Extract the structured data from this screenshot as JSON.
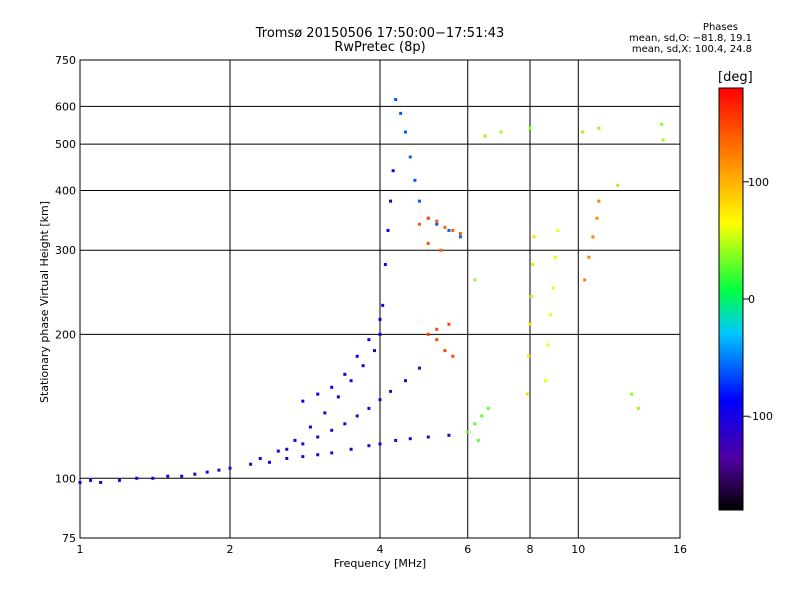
{
  "chart_data": {
    "type": "scatter",
    "title": "Tromsø 20150506 17:50:00−17:51:43",
    "subtitle": "RwPretec (8p)",
    "xlabel": "Frequency [MHz]",
    "ylabel": "Stationary phase Virtual Height [km]",
    "xscale": "log",
    "yscale": "log",
    "xlim": [
      1,
      16
    ],
    "ylim": [
      75,
      750
    ],
    "xticks": [
      1,
      2,
      4,
      6,
      8,
      10,
      16
    ],
    "yticks": [
      75,
      100,
      200,
      300,
      400,
      500,
      600,
      750
    ],
    "grid": true,
    "stats": {
      "heading": "Phases",
      "line1": "mean, sd,O: −81.8, 19.1",
      "line2": "mean, sd,X: 100.4, 24.8"
    },
    "colorbar": {
      "label": "[deg]",
      "range": [
        -180,
        180
      ],
      "ticks": [
        100,
        0,
        -100
      ],
      "colormap": "rainbow-black-to-red"
    },
    "trace_o_low": {
      "phase": -110,
      "points": [
        [
          1.0,
          98
        ],
        [
          1.05,
          99
        ],
        [
          1.1,
          98
        ],
        [
          1.2,
          99
        ],
        [
          1.3,
          100
        ],
        [
          1.4,
          100
        ],
        [
          1.5,
          101
        ],
        [
          1.6,
          101
        ],
        [
          1.7,
          102
        ],
        [
          1.8,
          103
        ],
        [
          1.9,
          104
        ],
        [
          2.0,
          105
        ],
        [
          2.2,
          107
        ],
        [
          2.4,
          108
        ],
        [
          2.6,
          110
        ],
        [
          2.8,
          111
        ],
        [
          3.0,
          112
        ],
        [
          3.2,
          113
        ],
        [
          3.5,
          115
        ],
        [
          3.8,
          117
        ],
        [
          4.0,
          118
        ],
        [
          4.3,
          120
        ],
        [
          4.6,
          121
        ],
        [
          5.0,
          122
        ],
        [
          5.5,
          123
        ]
      ]
    },
    "trace_o_rise": {
      "phase": -100,
      "points": [
        [
          2.3,
          110
        ],
        [
          2.5,
          114
        ],
        [
          2.7,
          120
        ],
        [
          2.9,
          128
        ],
        [
          3.1,
          137
        ],
        [
          3.3,
          148
        ],
        [
          3.5,
          160
        ],
        [
          3.7,
          172
        ],
        [
          3.9,
          185
        ],
        [
          4.0,
          200
        ],
        [
          4.05,
          230
        ],
        [
          4.1,
          280
        ],
        [
          4.15,
          330
        ],
        [
          4.2,
          380
        ],
        [
          4.25,
          440
        ]
      ]
    },
    "trace_x_low": {
      "phase": -115,
      "points": [
        [
          2.6,
          115
        ],
        [
          2.8,
          118
        ],
        [
          3.0,
          122
        ],
        [
          3.2,
          126
        ],
        [
          3.4,
          130
        ],
        [
          3.6,
          135
        ],
        [
          3.8,
          140
        ],
        [
          4.0,
          146
        ],
        [
          4.2,
          152
        ],
        [
          4.5,
          160
        ],
        [
          4.8,
          170
        ]
      ]
    },
    "trace_x_rise": {
      "phase": -95,
      "points": [
        [
          2.8,
          145
        ],
        [
          3.0,
          150
        ],
        [
          3.2,
          155
        ],
        [
          3.4,
          165
        ],
        [
          3.6,
          180
        ],
        [
          3.8,
          195
        ],
        [
          4.0,
          215
        ]
      ]
    },
    "trace_f2_top": {
      "phase": -60,
      "points": [
        [
          4.3,
          620
        ],
        [
          4.4,
          580
        ],
        [
          4.5,
          530
        ],
        [
          4.6,
          470
        ],
        [
          4.7,
          420
        ],
        [
          4.8,
          380
        ],
        [
          5.0,
          350
        ],
        [
          5.2,
          340
        ],
        [
          5.5,
          330
        ],
        [
          5.8,
          320
        ]
      ]
    },
    "cluster_orange_300": {
      "phase": 140,
      "points": [
        [
          4.8,
          340
        ],
        [
          5.0,
          350
        ],
        [
          5.2,
          345
        ],
        [
          5.4,
          335
        ],
        [
          5.6,
          330
        ],
        [
          5.8,
          325
        ],
        [
          5.0,
          310
        ],
        [
          5.3,
          300
        ]
      ]
    },
    "cluster_orange_190": {
      "phase": 150,
      "points": [
        [
          5.0,
          200
        ],
        [
          5.2,
          195
        ],
        [
          5.4,
          185
        ],
        [
          5.6,
          180
        ],
        [
          5.2,
          205
        ],
        [
          5.5,
          210
        ]
      ]
    },
    "cluster_green_120": {
      "phase": 30,
      "points": [
        [
          6.0,
          125
        ],
        [
          6.2,
          130
        ],
        [
          6.4,
          135
        ],
        [
          6.6,
          140
        ],
        [
          6.3,
          120
        ]
      ]
    },
    "column_8mhz": {
      "phase": 80,
      "points": [
        [
          7.9,
          150
        ],
        [
          7.95,
          180
        ],
        [
          8.0,
          210
        ],
        [
          8.05,
          240
        ],
        [
          8.1,
          280
        ],
        [
          8.15,
          320
        ]
      ]
    },
    "column_9mhz": {
      "phase": 60,
      "points": [
        [
          8.6,
          160
        ],
        [
          8.7,
          190
        ],
        [
          8.8,
          220
        ],
        [
          8.9,
          250
        ],
        [
          9.0,
          290
        ],
        [
          9.1,
          330
        ]
      ]
    },
    "column_11mhz": {
      "phase": 120,
      "points": [
        [
          10.3,
          260
        ],
        [
          10.5,
          290
        ],
        [
          10.7,
          320
        ],
        [
          10.9,
          350
        ],
        [
          11.0,
          380
        ]
      ]
    },
    "scattered_high": {
      "phase": 40,
      "points": [
        [
          7.0,
          530
        ],
        [
          8.0,
          540
        ],
        [
          10.2,
          530
        ],
        [
          11.0,
          540
        ],
        [
          14.7,
          550
        ],
        [
          14.8,
          510
        ],
        [
          6.5,
          520
        ],
        [
          13.2,
          140
        ],
        [
          12.8,
          150
        ],
        [
          12.0,
          410
        ],
        [
          6.2,
          260
        ]
      ]
    }
  }
}
